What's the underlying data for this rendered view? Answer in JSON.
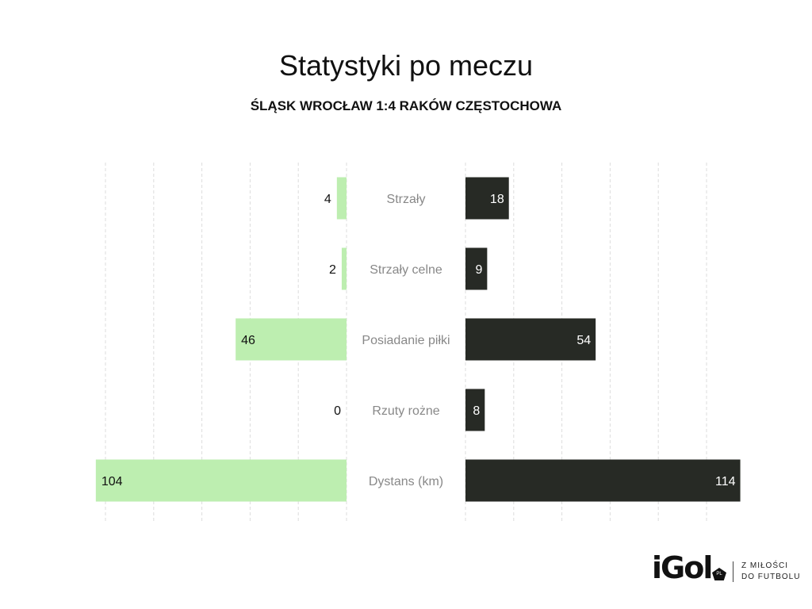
{
  "chart_data": {
    "type": "bar",
    "title": "Statystyki po meczu",
    "subtitle": "ŚLĄSK WROCŁAW 1:4 RAKÓW CZĘSTOCHOWA",
    "categories": [
      "Strzały",
      "Strzały celne",
      "Posiadanie piłki",
      "Rzuty rożne",
      "Dystans (km)"
    ],
    "series": [
      {
        "name": "Śląsk Wrocław",
        "values": [
          4,
          2,
          46,
          0,
          104
        ],
        "color": "#bdeeb0"
      },
      {
        "name": "Raków Częstochowa",
        "values": [
          18,
          9,
          54,
          8,
          114
        ],
        "color": "#272a25"
      }
    ],
    "xlim": [
      0,
      114
    ],
    "grid_step": 20,
    "grid": true
  },
  "logo": {
    "brand": "iGol",
    "badge": "PL",
    "tagline_1": "Z MIŁOŚCI",
    "tagline_2": "DO FUTBOLU"
  }
}
